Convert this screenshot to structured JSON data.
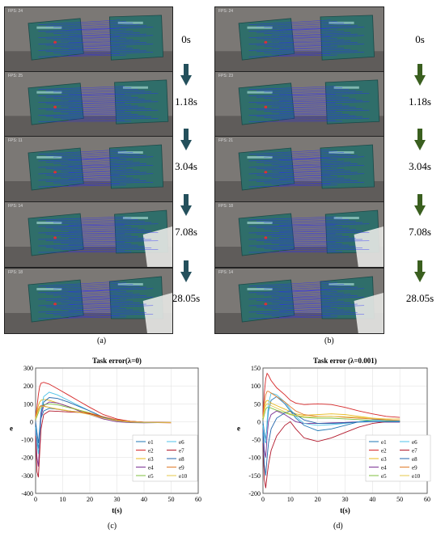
{
  "panels": {
    "a": {
      "caption": "(a)",
      "arrow_color": "#24505c",
      "rows": [
        {
          "fps": "FPS: 24",
          "time": "0s"
        },
        {
          "fps": "FPS: 25",
          "time": "1.18s"
        },
        {
          "fps": "FPS: 11",
          "time": "3.04s"
        },
        {
          "fps": "FPS: 14",
          "time": "7.08s"
        },
        {
          "fps": "FPS: 18",
          "time": "28.05s"
        }
      ]
    },
    "b": {
      "caption": "(b)",
      "arrow_color": "#3a5f1f",
      "rows": [
        {
          "fps": "FPS: 24",
          "time": "0s"
        },
        {
          "fps": "FPS: 23",
          "time": "1.18s"
        },
        {
          "fps": "FPS: 21",
          "time": "3.04s"
        },
        {
          "fps": "FPS: 18",
          "time": "7.08s"
        },
        {
          "fps": "FPS: 14",
          "time": "28.05s"
        }
      ]
    },
    "c": {
      "caption": "(c)"
    },
    "d": {
      "caption": "(d)"
    }
  },
  "colors": {
    "e1": "#1f77b4",
    "e2": "#d62728",
    "e3": "#e8b818",
    "e4": "#7b3294",
    "e5": "#7fbf3f",
    "e6": "#4fc3e8",
    "e7": "#b2182b",
    "e8": "#2166ac",
    "e9": "#e07b2a",
    "e10": "#e6c84a"
  },
  "chart_data": [
    {
      "type": "line",
      "title": "Task error(λ=0)",
      "xlabel": "t(s)",
      "ylabel": "e",
      "xlim": [
        0,
        60
      ],
      "ylim": [
        -400,
        300
      ],
      "xticks": [
        0,
        10,
        20,
        30,
        40,
        50,
        60
      ],
      "yticks": [
        -400,
        -300,
        -200,
        -100,
        0,
        100,
        200,
        300
      ],
      "grid": true,
      "legend_placement": "bottom-right",
      "legend": [
        "e1",
        "e2",
        "e3",
        "e4",
        "e5",
        "e6",
        "e7",
        "e8",
        "e9",
        "e10"
      ],
      "x": [
        0,
        0.5,
        1,
        1.5,
        2,
        3,
        5,
        8,
        12,
        16,
        20,
        25,
        30,
        35,
        40,
        45,
        50
      ],
      "series": [
        {
          "name": "e1",
          "values": [
            -20,
            -100,
            -150,
            -60,
            20,
            60,
            75,
            70,
            60,
            55,
            45,
            25,
            10,
            2,
            -2,
            -4,
            -5
          ]
        },
        {
          "name": "e2",
          "values": [
            30,
            80,
            150,
            195,
            215,
            220,
            210,
            185,
            150,
            115,
            80,
            40,
            15,
            2,
            -3,
            -5,
            -6
          ]
        },
        {
          "name": "e3",
          "values": [
            20,
            60,
            90,
            110,
            120,
            125,
            120,
            105,
            85,
            65,
            45,
            20,
            5,
            -2,
            -4,
            -5,
            -5
          ]
        },
        {
          "name": "e4",
          "values": [
            -50,
            -200,
            -250,
            -120,
            30,
            90,
            110,
            105,
            85,
            60,
            40,
            15,
            0,
            -5,
            -6,
            -5,
            -5
          ]
        },
        {
          "name": "e5",
          "values": [
            10,
            30,
            50,
            70,
            85,
            95,
            100,
            95,
            80,
            65,
            50,
            25,
            8,
            0,
            -3,
            -4,
            -4
          ]
        },
        {
          "name": "e6",
          "values": [
            -30,
            -120,
            -180,
            -80,
            60,
            140,
            165,
            150,
            120,
            90,
            60,
            25,
            5,
            -3,
            -5,
            -5,
            -5
          ]
        },
        {
          "name": "e7",
          "values": [
            -80,
            -280,
            -310,
            -180,
            -40,
            40,
            60,
            58,
            55,
            52,
            45,
            25,
            10,
            2,
            -2,
            -3,
            -4
          ]
        },
        {
          "name": "e8",
          "values": [
            0,
            -60,
            -120,
            -40,
            50,
            110,
            135,
            130,
            110,
            85,
            60,
            25,
            5,
            -3,
            -5,
            -5,
            -5
          ]
        },
        {
          "name": "e9",
          "values": [
            20,
            50,
            70,
            85,
            90,
            88,
            80,
            70,
            60,
            55,
            48,
            28,
            10,
            2,
            -2,
            -4,
            -5
          ]
        },
        {
          "name": "e10",
          "values": [
            15,
            40,
            60,
            75,
            82,
            85,
            80,
            72,
            62,
            52,
            40,
            20,
            5,
            -2,
            -4,
            -4,
            -4
          ]
        }
      ]
    },
    {
      "type": "line",
      "title": "Task error (λ=0.001)",
      "xlabel": "t(s)",
      "ylabel": "e",
      "xlim": [
        0,
        60
      ],
      "ylim": [
        -200,
        150
      ],
      "xticks": [
        0,
        10,
        20,
        30,
        40,
        50,
        60
      ],
      "yticks": [
        -200,
        -150,
        -100,
        -50,
        0,
        50,
        100,
        150
      ],
      "grid": true,
      "legend_placement": "bottom-right",
      "legend": [
        "e1",
        "e2",
        "e3",
        "e4",
        "e5",
        "e6",
        "e7",
        "e8",
        "e9",
        "e10"
      ],
      "x": [
        0,
        0.5,
        1,
        1.5,
        2,
        3,
        5,
        8,
        10,
        12,
        15,
        20,
        25,
        30,
        35,
        40,
        45,
        50
      ],
      "series": [
        {
          "name": "e1",
          "values": [
            0,
            -30,
            -50,
            -10,
            30,
            60,
            70,
            50,
            30,
            10,
            -10,
            -25,
            -20,
            -10,
            0,
            5,
            5,
            2
          ]
        },
        {
          "name": "e2",
          "values": [
            20,
            80,
            120,
            135,
            130,
            115,
            95,
            75,
            60,
            52,
            48,
            50,
            48,
            40,
            30,
            22,
            15,
            12
          ]
        },
        {
          "name": "e3",
          "values": [
            10,
            40,
            55,
            60,
            58,
            52,
            45,
            35,
            28,
            22,
            18,
            20,
            22,
            20,
            15,
            10,
            6,
            3
          ]
        },
        {
          "name": "e4",
          "values": [
            -20,
            -80,
            -100,
            -40,
            0,
            20,
            30,
            20,
            10,
            0,
            -5,
            -5,
            -3,
            -2,
            0,
            0,
            -1,
            -1
          ]
        },
        {
          "name": "e5",
          "values": [
            5,
            20,
            35,
            40,
            40,
            38,
            32,
            25,
            20,
            16,
            12,
            10,
            10,
            8,
            6,
            4,
            2,
            1
          ]
        },
        {
          "name": "e6",
          "values": [
            -10,
            -50,
            -60,
            0,
            50,
            80,
            75,
            55,
            35,
            15,
            -5,
            -10,
            -8,
            -5,
            0,
            3,
            3,
            2
          ]
        },
        {
          "name": "e7",
          "values": [
            -60,
            -160,
            -185,
            -150,
            -120,
            -80,
            -40,
            -10,
            0,
            -20,
            -45,
            -55,
            -45,
            -30,
            -15,
            -5,
            0,
            0
          ]
        },
        {
          "name": "e8",
          "values": [
            -30,
            -120,
            -150,
            -100,
            -60,
            -20,
            10,
            25,
            30,
            20,
            5,
            -5,
            -5,
            -3,
            -1,
            0,
            0,
            0
          ]
        },
        {
          "name": "e9",
          "values": [
            15,
            50,
            75,
            85,
            85,
            80,
            70,
            55,
            42,
            30,
            20,
            15,
            15,
            12,
            10,
            8,
            5,
            4
          ]
        },
        {
          "name": "e10",
          "values": [
            10,
            30,
            45,
            50,
            50,
            45,
            38,
            28,
            22,
            18,
            14,
            14,
            15,
            14,
            12,
            10,
            8,
            8
          ]
        }
      ]
    }
  ]
}
